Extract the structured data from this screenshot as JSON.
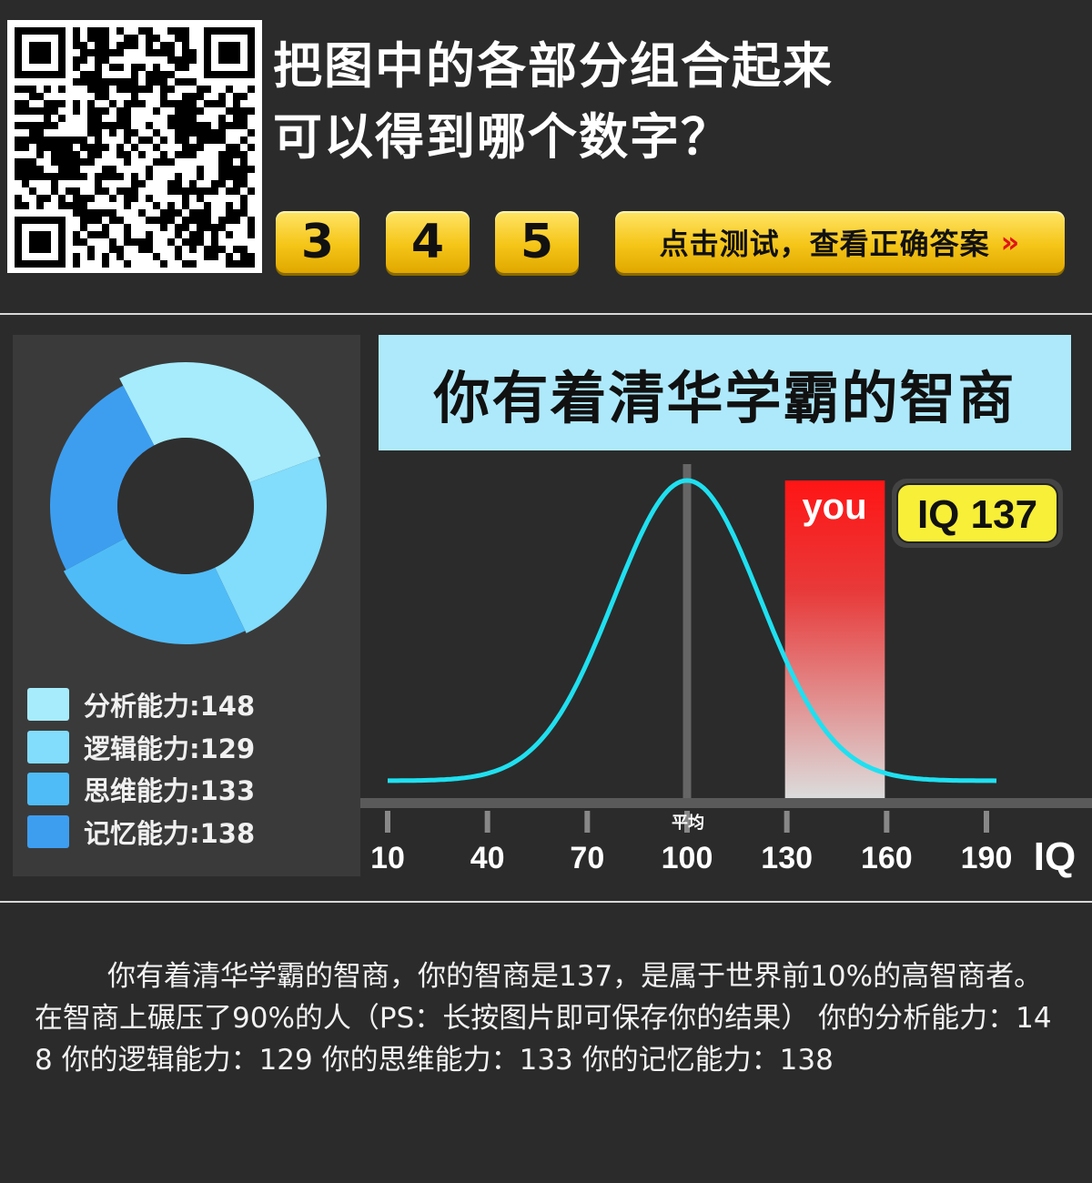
{
  "question": {
    "line1": "把图中的各部分组合起来",
    "line2": "可以得到哪个数字？"
  },
  "options": [
    "3",
    "4",
    "5"
  ],
  "cta": {
    "label": "点击测试，查看正确答案",
    "arrow": "»"
  },
  "result": {
    "banner": "你有着清华学霸的智商",
    "you_label": "you",
    "iq_badge": "IQ 137",
    "axis_mean_label": "平均",
    "axis_unit": "IQ"
  },
  "legend": [
    {
      "label": "分析能力:148",
      "value": 148,
      "color": "#a6ecfc"
    },
    {
      "label": "逻辑能力:129",
      "value": 129,
      "color": "#82dcfb"
    },
    {
      "label": "思维能力:133",
      "value": 133,
      "color": "#4fbcf7"
    },
    {
      "label": "记忆能力:138",
      "value": 138,
      "color": "#3d9ef0"
    }
  ],
  "chart_data": [
    {
      "type": "pie",
      "categories": [
        "分析能力",
        "逻辑能力",
        "思维能力",
        "记忆能力"
      ],
      "values": [
        148,
        129,
        133,
        138
      ],
      "colors": [
        "#a6ecfc",
        "#82dcfb",
        "#4fbcf7",
        "#3d9ef0"
      ],
      "donut": true
    },
    {
      "type": "line",
      "x_ticks": [
        10,
        40,
        70,
        100,
        130,
        160,
        190
      ],
      "xlim": [
        10,
        190
      ],
      "mean": 100,
      "highlight_range": [
        130,
        160
      ],
      "marker_value": 137,
      "curve_color": "#1fe0f0",
      "xlabel": "IQ"
    }
  ],
  "description": {
    "text": "你有着清华学霸的智商，你的智商是137，是属于世界前10%的高智商者。在智商上碾压了90%的人（PS：长按图片即可保存你的结果） 你的分析能力：148 你的逻辑能力：129 你的思维能力：133 你的记忆能力：138"
  }
}
